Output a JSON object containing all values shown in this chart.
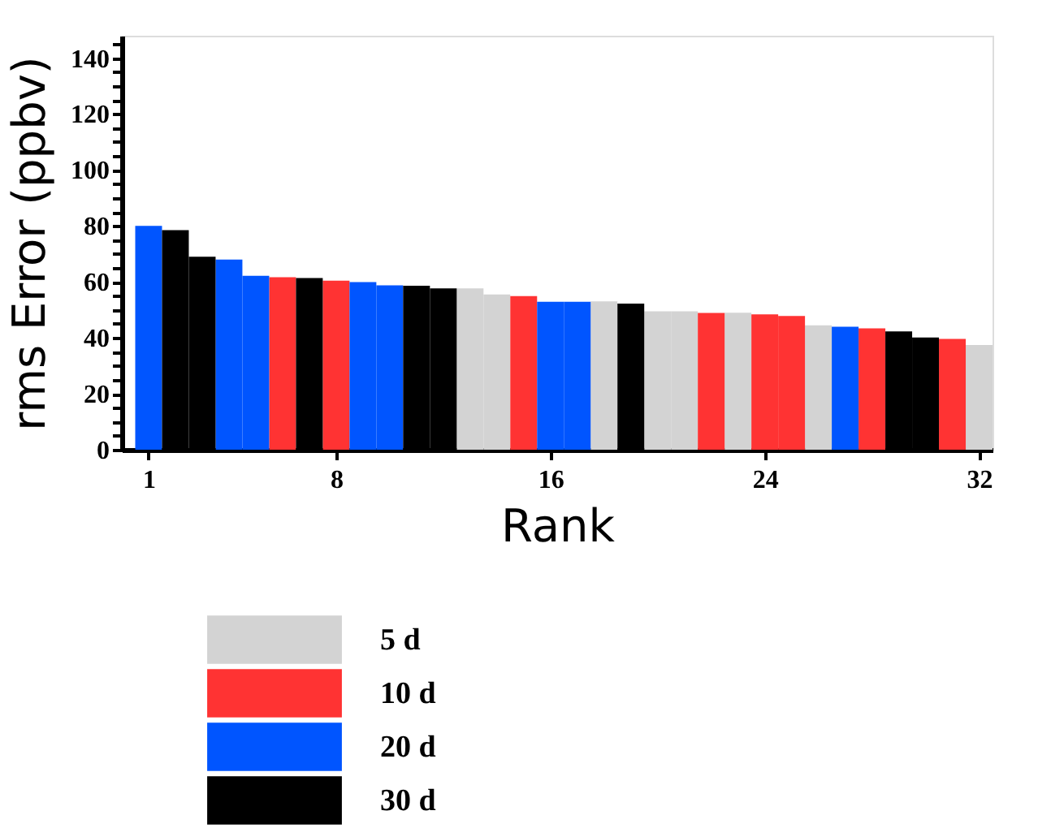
{
  "chart_data": {
    "type": "bar",
    "xlabel": "Rank",
    "ylabel": "rms Error (ppbv)",
    "x": [
      1,
      2,
      3,
      4,
      5,
      6,
      7,
      8,
      9,
      10,
      11,
      12,
      13,
      14,
      15,
      16,
      17,
      18,
      19,
      20,
      21,
      22,
      23,
      24,
      25,
      26,
      27,
      28,
      29,
      30,
      31,
      32
    ],
    "series": [
      {
        "name": "5 d",
        "color": "#d3d3d3",
        "values": [
          null,
          null,
          null,
          null,
          null,
          null,
          null,
          null,
          null,
          null,
          null,
          null,
          57.7,
          55.5,
          null,
          null,
          null,
          53,
          null,
          49.5,
          49.5,
          null,
          49,
          null,
          null,
          44.5,
          null,
          null,
          null,
          null,
          null,
          37.4
        ]
      },
      {
        "name": "10 d",
        "color": "#ff3333",
        "values": [
          null,
          null,
          null,
          null,
          null,
          61.7,
          null,
          60.4,
          null,
          null,
          null,
          null,
          null,
          null,
          54.9,
          null,
          null,
          null,
          null,
          null,
          null,
          48.9,
          null,
          48.4,
          47.8,
          null,
          null,
          43.4,
          null,
          null,
          39.6,
          null
        ]
      },
      {
        "name": "20 d",
        "color": "#0055ff",
        "values": [
          80,
          null,
          null,
          68,
          62.2,
          null,
          null,
          null,
          59.9,
          58.8,
          null,
          null,
          null,
          null,
          null,
          52.9,
          52.9,
          null,
          null,
          null,
          null,
          null,
          null,
          null,
          null,
          null,
          44,
          null,
          null,
          null,
          null,
          null
        ]
      },
      {
        "name": "30 d",
        "color": "#000000",
        "values": [
          null,
          78.5,
          69,
          null,
          null,
          null,
          61.4,
          null,
          null,
          null,
          58.6,
          57.7,
          null,
          null,
          null,
          null,
          null,
          null,
          52.2,
          null,
          null,
          null,
          null,
          null,
          null,
          null,
          null,
          null,
          42.3,
          40.1,
          null,
          null
        ]
      }
    ],
    "xlim": [
      0,
      32.5
    ],
    "xticks": [
      1,
      8,
      16,
      24,
      32
    ],
    "ylim": [
      0,
      148
    ],
    "yticks": [
      0,
      {
        "value": 5,
        "label": null
      },
      {
        "value": 10,
        "label": null
      },
      {
        "value": 15,
        "label": null
      },
      20,
      {
        "value": 25,
        "label": null
      },
      {
        "value": 30,
        "label": null
      },
      {
        "value": 35,
        "label": null
      },
      40,
      {
        "value": 45,
        "label": null
      },
      {
        "value": 50,
        "label": null
      },
      {
        "value": 55,
        "label": null
      },
      60,
      {
        "value": 65,
        "label": null
      },
      {
        "value": 70,
        "label": null
      },
      {
        "value": 75,
        "label": null
      },
      80,
      {
        "value": 85,
        "label": null
      },
      {
        "value": 90,
        "label": null
      },
      {
        "value": 95,
        "label": null
      },
      100,
      {
        "value": 105,
        "label": null
      },
      {
        "value": 110,
        "label": null
      },
      {
        "value": 115,
        "label": null
      },
      120,
      {
        "value": 125,
        "label": null
      },
      {
        "value": 130,
        "label": null
      },
      {
        "value": 135,
        "label": null
      },
      140,
      {
        "value": 145,
        "label": null
      }
    ],
    "legend": "bottom",
    "grid": false
  }
}
